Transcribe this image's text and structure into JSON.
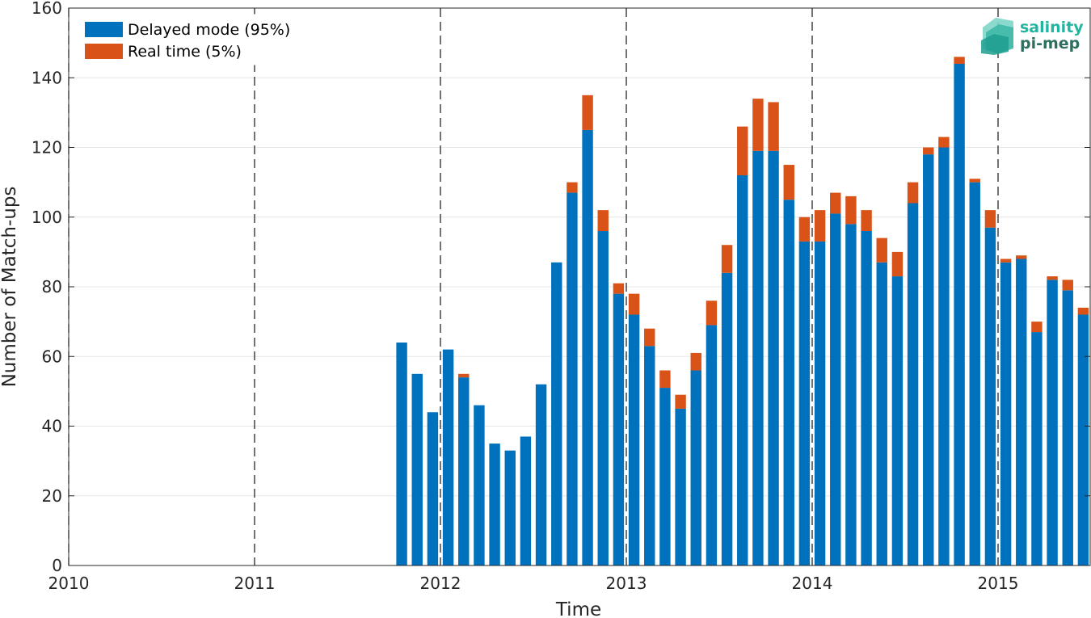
{
  "logo": {
    "line1": "salinity",
    "line2": "pi-mep"
  },
  "colors": {
    "delayed": "#0072BD",
    "realtime": "#D95319",
    "grid": "#e6e6e6",
    "axis": "#262626",
    "logo1": "#22b5a0",
    "logo2": "#2f6f5f"
  },
  "chart_data": {
    "type": "bar",
    "stacked": true,
    "xlabel": "Time",
    "ylabel": "Number of Match-ups",
    "xlim": [
      "2010-01",
      "2015-07"
    ],
    "ylim": [
      0,
      160
    ],
    "y_ticks": [
      0,
      20,
      40,
      60,
      80,
      100,
      120,
      140,
      160
    ],
    "x_tick_labels": [
      "2010",
      "2011",
      "2012",
      "2013",
      "2014",
      "2015"
    ],
    "year_dividers": [
      "2011",
      "2012",
      "2013",
      "2014",
      "2015"
    ],
    "grid": "horizontal",
    "legend_position": "top-left",
    "categories": [
      "2011-10",
      "2011-11",
      "2011-12",
      "2012-01",
      "2012-02",
      "2012-03",
      "2012-04",
      "2012-05",
      "2012-06",
      "2012-07",
      "2012-08",
      "2012-09",
      "2012-10",
      "2012-11",
      "2012-12",
      "2013-01",
      "2013-02",
      "2013-03",
      "2013-04",
      "2013-05",
      "2013-06",
      "2013-07",
      "2013-08",
      "2013-09",
      "2013-10",
      "2013-11",
      "2013-12",
      "2014-01",
      "2014-02",
      "2014-03",
      "2014-04",
      "2014-05",
      "2014-06",
      "2014-07",
      "2014-08",
      "2014-09",
      "2014-10",
      "2014-11",
      "2014-12",
      "2015-01",
      "2015-02",
      "2015-03",
      "2015-04",
      "2015-05",
      "2015-06"
    ],
    "series": [
      {
        "name": "Delayed mode (95%)",
        "values": [
          64,
          55,
          44,
          62,
          54,
          46,
          35,
          33,
          37,
          52,
          87,
          107,
          125,
          96,
          78,
          72,
          63,
          51,
          45,
          56,
          69,
          84,
          112,
          119,
          119,
          105,
          93,
          93,
          101,
          98,
          96,
          87,
          83,
          104,
          118,
          120,
          144,
          110,
          97,
          87,
          88,
          67,
          82,
          79,
          72
        ]
      },
      {
        "name": "Real time (5%)",
        "values": [
          0,
          0,
          0,
          0,
          1,
          0,
          0,
          0,
          0,
          0,
          0,
          3,
          10,
          6,
          3,
          6,
          5,
          5,
          4,
          5,
          7,
          8,
          14,
          15,
          14,
          10,
          7,
          9,
          6,
          8,
          6,
          7,
          7,
          6,
          2,
          3,
          2,
          1,
          5,
          1,
          1,
          3,
          1,
          3,
          2
        ]
      }
    ]
  }
}
